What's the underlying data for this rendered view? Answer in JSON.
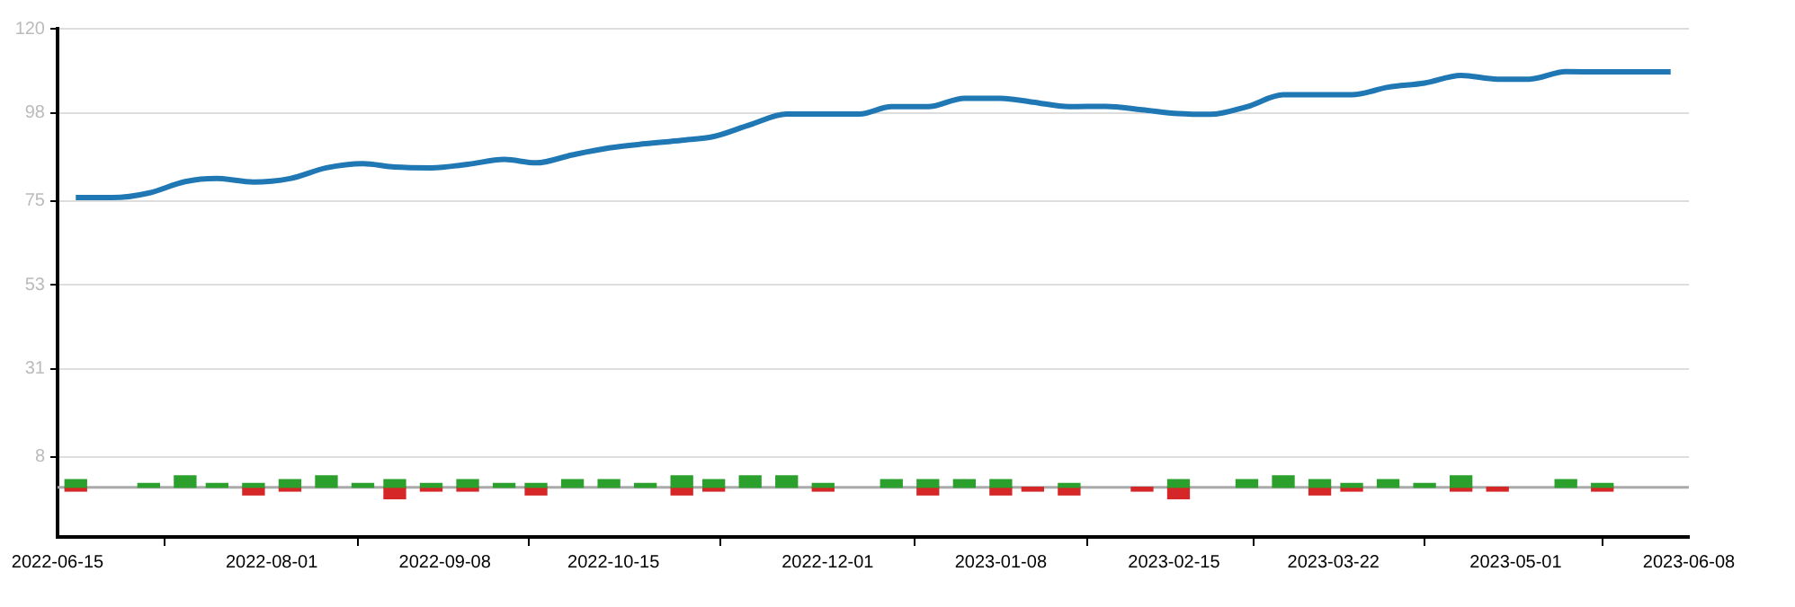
{
  "chart_data": {
    "type": "bar",
    "x": [
      "2022-06-19",
      "2022-06-27",
      "2022-07-05",
      "2022-07-13",
      "2022-07-20",
      "2022-07-28",
      "2022-08-05",
      "2022-08-13",
      "2022-08-21",
      "2022-08-28",
      "2022-09-05",
      "2022-09-13",
      "2022-09-21",
      "2022-09-28",
      "2022-10-06",
      "2022-10-14",
      "2022-10-22",
      "2022-10-30",
      "2022-11-06",
      "2022-11-14",
      "2022-11-22",
      "2022-11-30",
      "2022-12-08",
      "2022-12-15",
      "2022-12-23",
      "2022-12-31",
      "2023-01-08",
      "2023-01-15",
      "2023-01-23",
      "2023-01-31",
      "2023-02-08",
      "2023-02-16",
      "2023-02-23",
      "2023-03-03",
      "2023-03-11",
      "2023-03-19",
      "2023-03-26",
      "2023-04-03",
      "2023-04-11",
      "2023-04-19",
      "2023-04-27",
      "2023-05-04",
      "2023-05-12",
      "2023-05-20",
      "2023-05-28",
      "2023-06-04"
    ],
    "series": [
      {
        "type": "line",
        "color": "#1f77b4",
        "values": [
          75.8,
          75.8,
          77.0,
          80.0,
          80.8,
          79.9,
          80.8,
          83.6,
          84.7,
          83.8,
          83.6,
          84.5,
          85.8,
          84.9,
          87.0,
          88.8,
          89.9,
          90.8,
          91.8,
          94.9,
          97.7,
          97.7,
          97.7,
          99.6,
          99.6,
          101.8,
          101.8,
          100.8,
          99.6,
          99.7,
          98.8,
          97.8,
          97.6,
          99.6,
          102.7,
          102.7,
          102.7,
          104.7,
          105.8,
          107.8,
          106.8,
          106.8,
          108.8,
          108.7,
          108.7,
          108.7
        ]
      },
      {
        "color": "#2ca02c",
        "values": [
          2,
          null,
          1,
          3,
          1,
          1,
          2,
          3,
          1,
          2,
          1,
          2,
          1,
          1,
          2,
          2,
          1,
          3,
          2,
          3,
          3,
          1,
          null,
          2,
          2,
          2,
          2,
          null,
          1,
          null,
          null,
          2,
          null,
          2,
          3,
          2,
          1,
          2,
          1,
          3,
          null,
          null,
          2,
          1,
          null,
          null
        ]
      },
      {
        "color": "#d62728",
        "values": [
          -1,
          null,
          null,
          null,
          null,
          -2,
          -1,
          null,
          null,
          -3,
          -1,
          -1,
          null,
          -2,
          null,
          null,
          null,
          -2,
          -1,
          null,
          null,
          -1,
          null,
          null,
          -2,
          null,
          -2,
          -1,
          -2,
          null,
          -1,
          -3,
          null,
          null,
          null,
          -2,
          -1,
          null,
          null,
          -1,
          -1,
          null,
          null,
          -1,
          null,
          null
        ]
      }
    ],
    "stacked": true,
    "xlim": [
      "2022-06-15",
      "2023-06-08"
    ],
    "xticks": [
      "2022-06-15",
      "2022-08-01",
      "2022-09-08",
      "2022-10-15",
      "2022-12-01",
      "2023-01-08",
      "2023-02-15",
      "2023-03-22",
      "2023-05-01",
      "2023-06-08"
    ],
    "ylim": [
      -13,
      120
    ],
    "yticks": [
      8,
      31,
      53,
      75,
      98,
      120
    ],
    "ref_lines": [
      {
        "axis": "y",
        "value": 0,
        "color": "#aaaaaa"
      }
    ],
    "grid": "y",
    "legend": false,
    "marker": "none",
    "line_style": "solid"
  }
}
